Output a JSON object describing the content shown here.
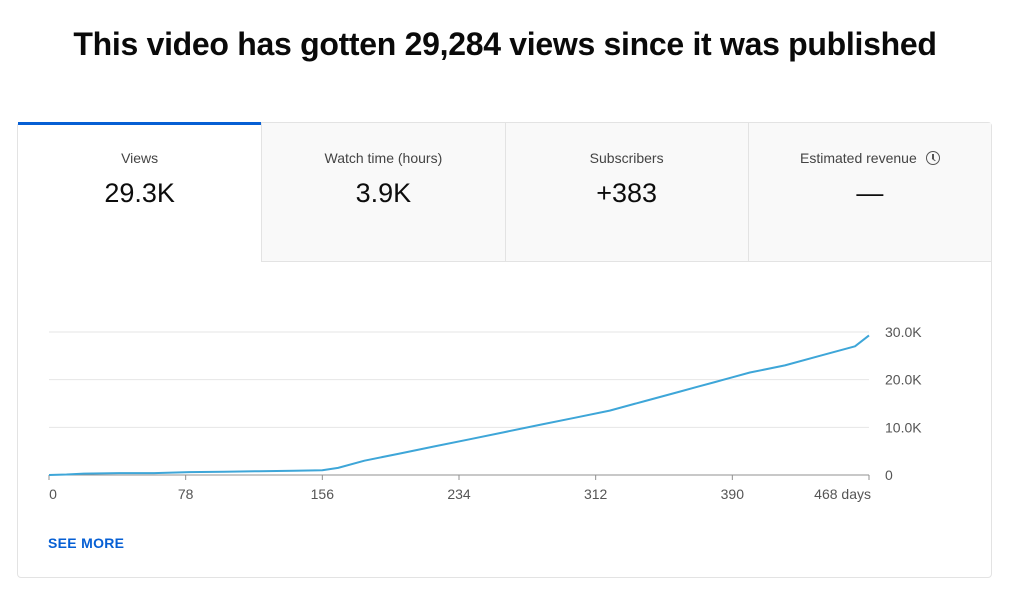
{
  "headline": "This video has gotten 29,284 views since it was published",
  "tabs": [
    {
      "label": "Views",
      "value": "29.3K"
    },
    {
      "label": "Watch time (hours)",
      "value": "3.9K"
    },
    {
      "label": "Subscribers",
      "value": "+383"
    },
    {
      "label": "Estimated revenue",
      "value": "—",
      "icon": "clock-icon"
    }
  ],
  "see_more": "SEE MORE",
  "colors": {
    "accent": "#065fd4",
    "line": "#3ea6d8"
  },
  "chart_data": {
    "type": "line",
    "xlabel": "",
    "ylabel": "",
    "x_ticks": [
      "0",
      "78",
      "156",
      "234",
      "312",
      "390",
      "468 days"
    ],
    "y_ticks": [
      "0",
      "10.0K",
      "20.0K",
      "30.0K"
    ],
    "xlim": [
      0,
      468
    ],
    "ylim": [
      0,
      30000
    ],
    "grid": true,
    "series": [
      {
        "x": [
          0,
          10,
          20,
          40,
          60,
          80,
          100,
          120,
          140,
          156,
          165,
          180,
          200,
          220,
          240,
          260,
          280,
          300,
          320,
          340,
          360,
          370,
          380,
          390,
          400,
          420,
          440,
          460,
          468
        ],
        "y": [
          0,
          100,
          300,
          400,
          400,
          600,
          700,
          800,
          900,
          1000,
          1500,
          3000,
          4500,
          6000,
          7500,
          9000,
          10500,
          12000,
          13500,
          15500,
          17500,
          18500,
          19500,
          20500,
          21500,
          23000,
          25000,
          27000,
          29284
        ]
      }
    ]
  }
}
